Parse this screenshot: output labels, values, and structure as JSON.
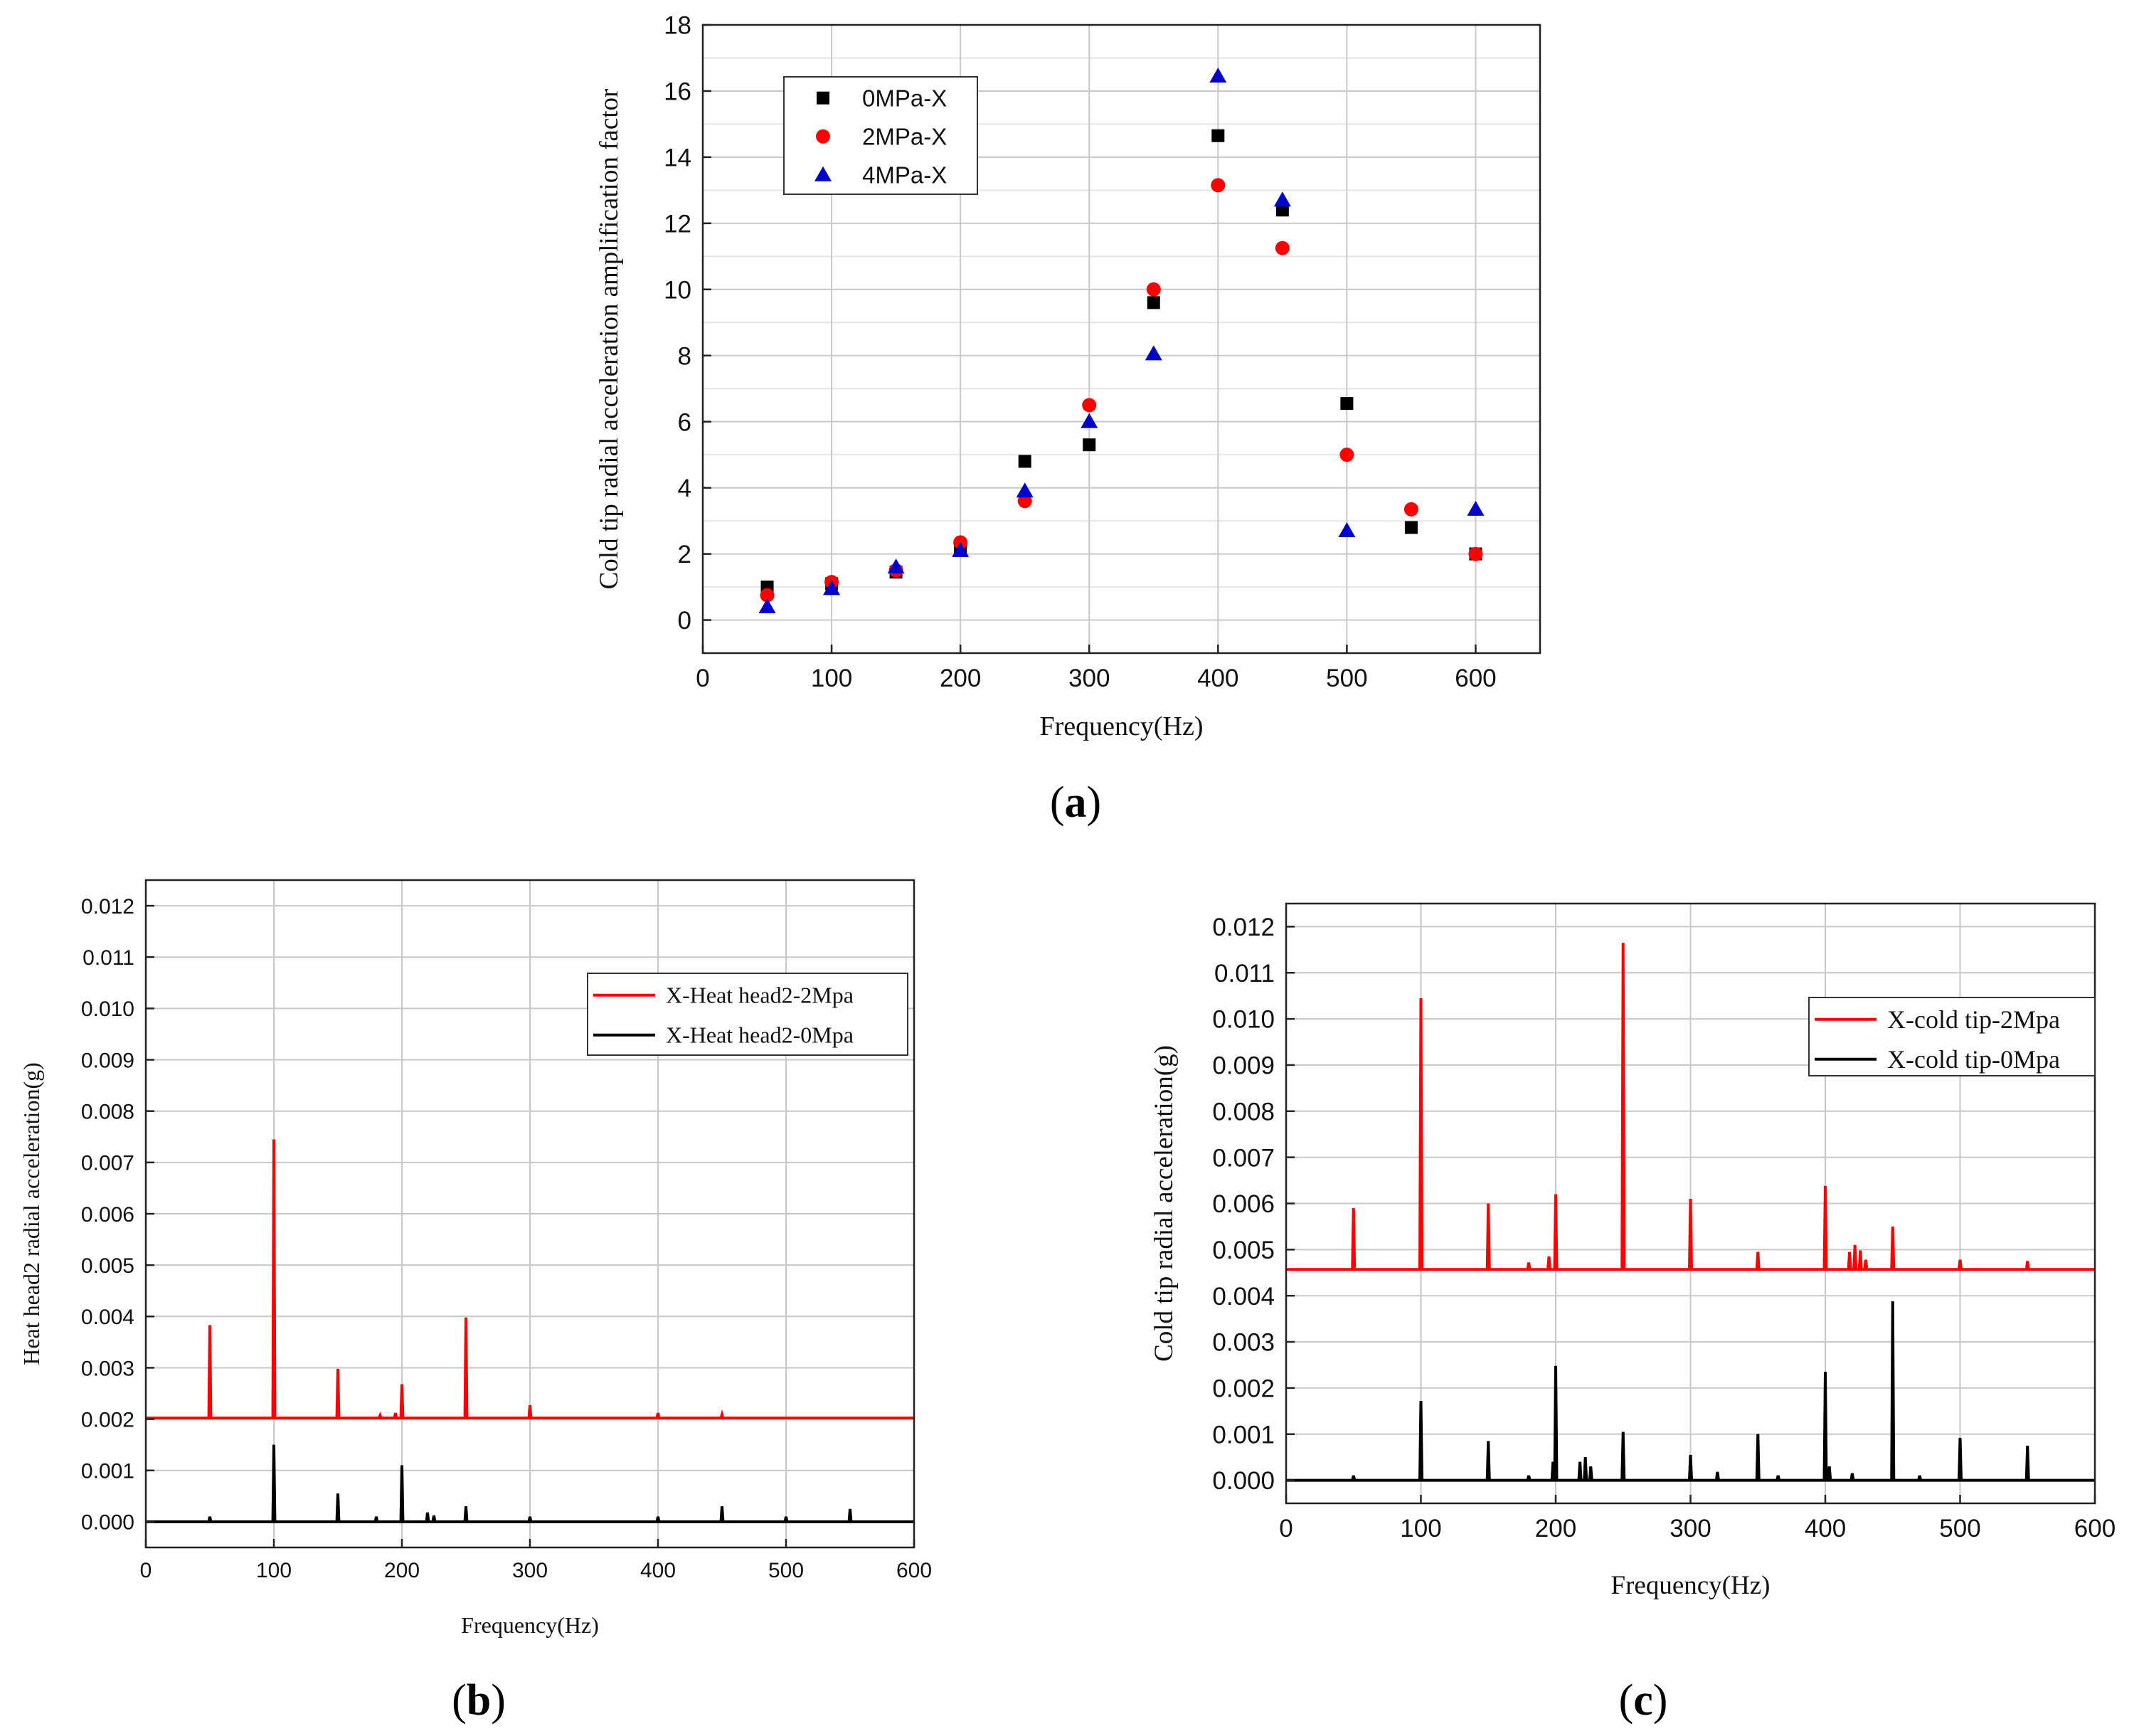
{
  "chart_data": [
    {
      "type": "scatter",
      "panel_label": "a",
      "xlabel": "Frequency(Hz)",
      "ylabel": "Cold tip radial acceleration amplification factor",
      "xlim": [
        0,
        650
      ],
      "ylim": [
        -1,
        18
      ],
      "xticks": [
        0,
        100,
        200,
        300,
        400,
        500,
        600
      ],
      "yticks": [
        0,
        2,
        4,
        6,
        8,
        10,
        12,
        14,
        16,
        18
      ],
      "grid": true,
      "legend_position": "top-left",
      "series": [
        {
          "name": "0MPa-X",
          "marker": "square",
          "color": "#000000",
          "x": [
            50,
            100,
            150,
            200,
            250,
            300,
            350,
            400,
            450,
            500,
            550,
            600
          ],
          "y": [
            1.0,
            1.1,
            1.45,
            2.15,
            4.8,
            5.3,
            9.6,
            14.65,
            12.4,
            6.55,
            2.8,
            2.0
          ]
        },
        {
          "name": "2MPa-X",
          "marker": "circle",
          "color": "#ff0000",
          "x": [
            50,
            100,
            150,
            200,
            250,
            300,
            350,
            400,
            450,
            500,
            550,
            600
          ],
          "y": [
            0.75,
            1.15,
            1.5,
            2.35,
            3.6,
            6.5,
            10.0,
            13.15,
            11.25,
            5.0,
            3.35,
            2.0
          ]
        },
        {
          "name": "4MPa-X",
          "marker": "triangle",
          "color": "#0000cc",
          "x": [
            50,
            100,
            150,
            200,
            250,
            300,
            350,
            400,
            450,
            500,
            550,
            600
          ],
          "y": [
            0.4,
            0.95,
            1.6,
            2.1,
            3.9,
            6.0,
            8.05,
            16.45,
            12.7,
            2.7,
            null,
            3.35
          ]
        }
      ]
    },
    {
      "type": "line",
      "panel_label": "b",
      "xlabel": "Frequency(Hz)",
      "ylabel": "Heat head2 radial acceleration(g)",
      "xlim": [
        0,
        600
      ],
      "ylim": [
        -0.0005,
        0.0125
      ],
      "xticks": [
        0,
        100,
        200,
        300,
        400,
        500,
        600
      ],
      "yticks": [
        "0.000",
        "0.001",
        "0.002",
        "0.003",
        "0.004",
        "0.005",
        "0.006",
        "0.007",
        "0.008",
        "0.009",
        "0.010",
        "0.011",
        "0.012"
      ],
      "grid": true,
      "legend_position": "top-right",
      "series": [
        {
          "name": "X-Heat head2-2Mpa",
          "color": "#ff0000",
          "baseline": 0.00202,
          "peaks": [
            [
              50,
              0.00383
            ],
            [
              100,
              0.00745
            ],
            [
              150,
              0.00298
            ],
            [
              183,
              0.00207
            ],
            [
              195,
              0.00212
            ],
            [
              200,
              0.00268
            ],
            [
              250,
              0.00398
            ],
            [
              300,
              0.00227
            ],
            [
              400,
              0.00212
            ],
            [
              450,
              0.00209
            ]
          ]
        },
        {
          "name": "X-Heat head2-0Mpa",
          "color": "#000000",
          "baseline": 0.0,
          "peaks": [
            [
              50,
              0.0001
            ],
            [
              100,
              0.0015
            ],
            [
              150,
              0.00055
            ],
            [
              180,
              0.0001
            ],
            [
              200,
              0.0011
            ],
            [
              220,
              0.00018
            ],
            [
              225,
              0.00012
            ],
            [
              250,
              0.0003
            ],
            [
              300,
              0.0001
            ],
            [
              400,
              0.0001
            ],
            [
              450,
              0.0003
            ],
            [
              500,
              0.0001
            ],
            [
              550,
              0.00025
            ]
          ]
        }
      ]
    },
    {
      "type": "line",
      "panel_label": "c",
      "xlabel": "Frequency(Hz)",
      "ylabel": "Cold tip radial acceleration(g)",
      "xlim": [
        0,
        600
      ],
      "ylim": [
        -0.0005,
        0.0125
      ],
      "xticks": [
        0,
        100,
        200,
        300,
        400,
        500,
        600
      ],
      "yticks": [
        "0.000",
        "0.001",
        "0.002",
        "0.003",
        "0.004",
        "0.005",
        "0.006",
        "0.007",
        "0.008",
        "0.009",
        "0.010",
        "0.011",
        "0.012"
      ],
      "grid": true,
      "legend_position": "top-right",
      "series": [
        {
          "name": "X-cold tip-2Mpa",
          "color": "#ff0000",
          "baseline": 0.00457,
          "peaks": [
            [
              50,
              0.0059
            ],
            [
              100,
              0.01045
            ],
            [
              150,
              0.006
            ],
            [
              180,
              0.00472
            ],
            [
              195,
              0.00485
            ],
            [
              200,
              0.0062
            ],
            [
              250,
              0.01165
            ],
            [
              300,
              0.0061
            ],
            [
              350,
              0.00495
            ],
            [
              400,
              0.00638
            ],
            [
              418,
              0.00495
            ],
            [
              422,
              0.0051
            ],
            [
              426,
              0.00498
            ],
            [
              430,
              0.00478
            ],
            [
              450,
              0.0055
            ],
            [
              500,
              0.00478
            ],
            [
              550,
              0.00475
            ]
          ]
        },
        {
          "name": "X-cold tip-0Mpa",
          "color": "#000000",
          "baseline": 0.0,
          "peaks": [
            [
              50,
              0.0001
            ],
            [
              100,
              0.00172
            ],
            [
              150,
              0.00085
            ],
            [
              180,
              0.0001
            ],
            [
              198,
              0.0004
            ],
            [
              200,
              0.00248
            ],
            [
              218,
              0.0004
            ],
            [
              222,
              0.0005
            ],
            [
              226,
              0.0003
            ],
            [
              250,
              0.00105
            ],
            [
              300,
              0.00055
            ],
            [
              320,
              0.00018
            ],
            [
              350,
              0.001
            ],
            [
              365,
              0.0001
            ],
            [
              400,
              0.00235
            ],
            [
              403,
              0.0003
            ],
            [
              420,
              0.00015
            ],
            [
              450,
              0.00388
            ],
            [
              470,
              0.0001
            ],
            [
              500,
              0.00092
            ],
            [
              550,
              0.00075
            ]
          ]
        }
      ]
    }
  ]
}
